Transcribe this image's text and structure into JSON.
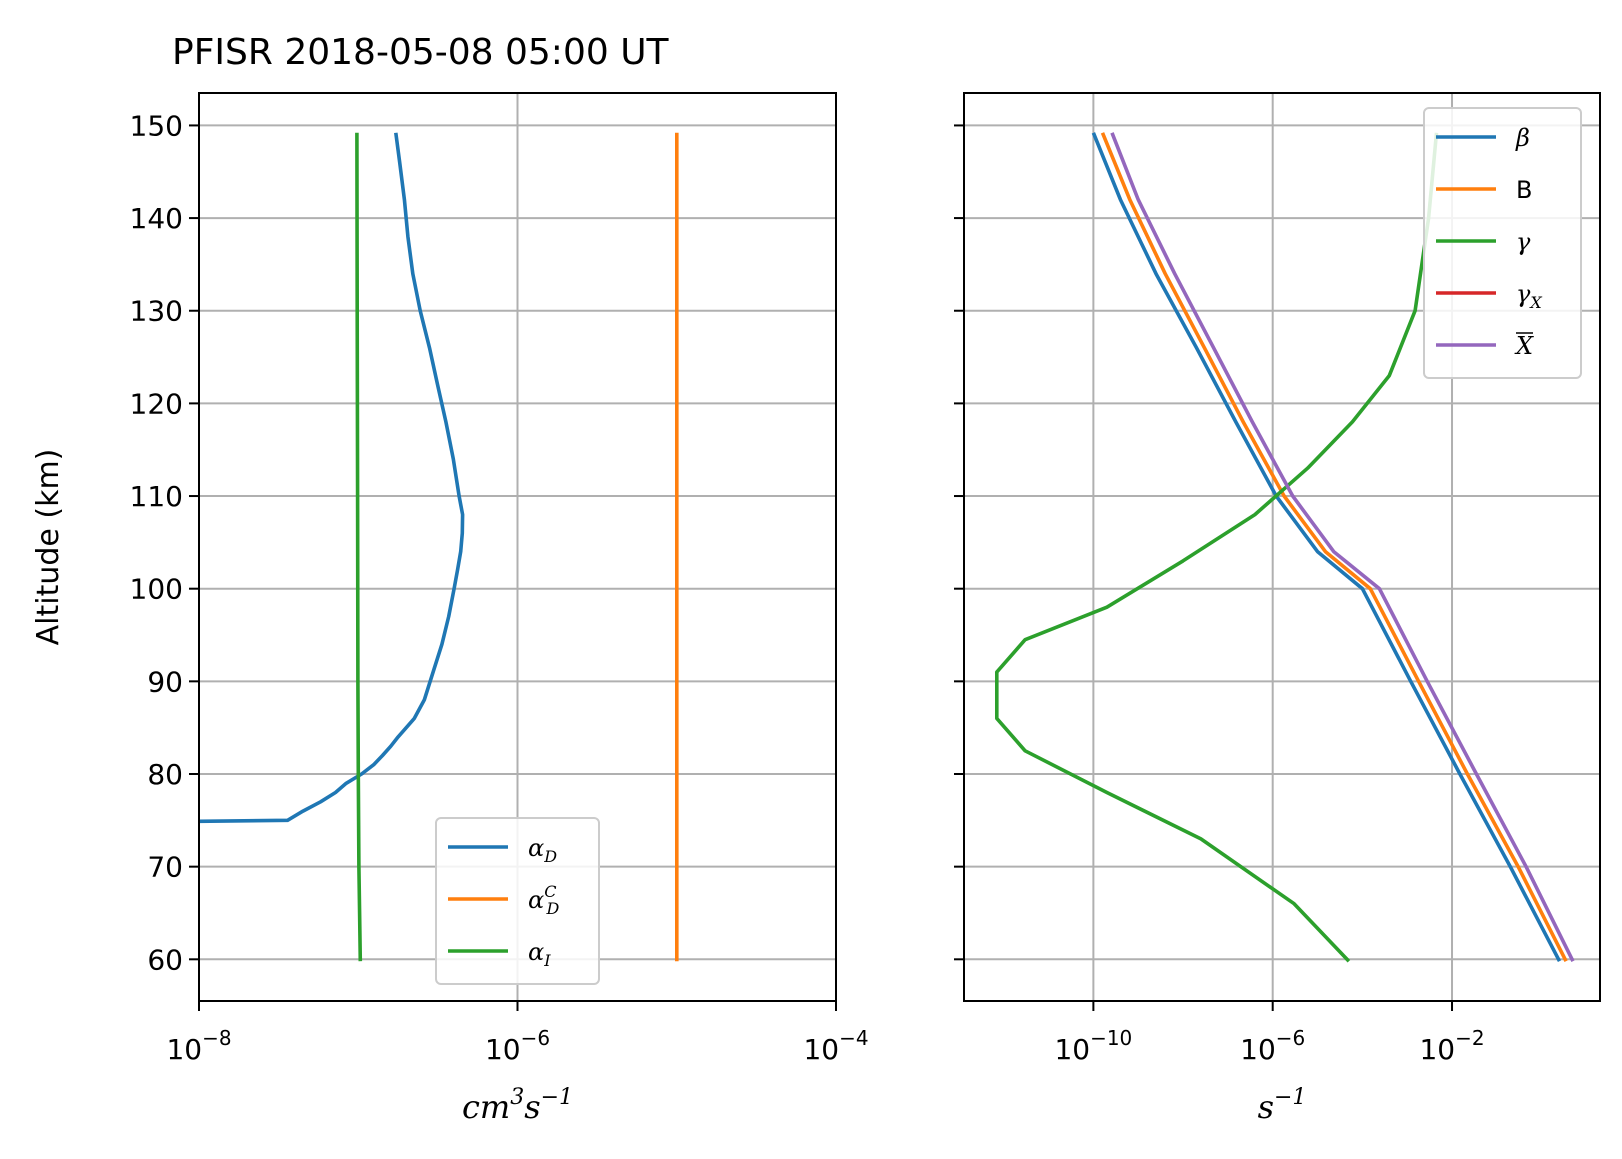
{
  "chart_data": [
    {
      "type": "line",
      "title": "PFISR 2018-05-08 05:00 UT",
      "ylabel": "Altitude (km)",
      "xlabel_base": "cm",
      "xlabel_sup1": "3",
      "xlabel_mid": "s",
      "xlabel_sup2": "−1",
      "xscale": "log",
      "xlim": [
        1e-08,
        0.0001
      ],
      "ylim": [
        55.5,
        153.5
      ],
      "xticks": [
        1e-08,
        1e-06,
        0.0001
      ],
      "xtick_base": "10",
      "xtick_exponents": [
        "−8",
        "−6",
        "−4"
      ],
      "yticks": [
        60,
        70,
        80,
        90,
        100,
        110,
        120,
        130,
        140,
        150
      ],
      "ytick_labels": [
        "60",
        "70",
        "80",
        "90",
        "100",
        "110",
        "120",
        "130",
        "140",
        "150"
      ],
      "grid": true,
      "legend_location": "lower-right",
      "series": [
        {
          "name": "αD",
          "label_main": "α",
          "label_sub": "D",
          "label_sup": "",
          "color": "#1f77b4",
          "x": [
            1e-08,
            3.6e-08,
            4.5e-08,
            5.8e-08,
            7.2e-08,
            8.4e-08,
            1.05e-07,
            1.25e-07,
            1.42e-07,
            1.6e-07,
            1.78e-07,
            2e-07,
            2.25e-07,
            2.6e-07,
            2.95e-07,
            3.35e-07,
            3.7e-07,
            4e-07,
            4.2e-07,
            4.4e-07,
            4.5e-07,
            4.52e-07,
            4.3e-07,
            3.95e-07,
            3.55e-07,
            3.15e-07,
            2.8e-07,
            2.45e-07,
            2.2e-07,
            2.05e-07,
            1.95e-07,
            1.82e-07,
            1.72e-07
          ],
          "y": [
            74.9,
            75,
            76,
            77,
            78,
            79,
            80,
            81,
            82,
            83,
            84,
            85,
            86,
            88,
            91,
            94,
            97,
            100,
            102,
            104,
            106,
            108,
            110,
            114,
            118,
            122,
            126,
            130,
            134,
            138,
            142,
            146,
            149.2
          ]
        },
        {
          "name": "αDC",
          "label_main": "α",
          "label_sub": "D",
          "label_sup": "C",
          "color": "#ff7f0e",
          "x": [
            1e-05,
            1e-05
          ],
          "y": [
            59.8,
            149.2
          ]
        },
        {
          "name": "αI",
          "label_main": "α",
          "label_sub": "I",
          "label_sup": "",
          "color": "#2ca02c",
          "x": [
            1.03e-07,
            1.02e-07,
            1.01e-07,
            1e-07,
            9.95e-08,
            9.9e-08,
            9.85e-08,
            9.8e-08
          ],
          "y": [
            59.8,
            65,
            70,
            80,
            90,
            110,
            130,
            149.2
          ]
        }
      ]
    },
    {
      "type": "line",
      "xlabel_base": "s",
      "xlabel_sup": "−1",
      "xscale": "log",
      "xlim": [
        1.3e-13,
        20.0
      ],
      "ylim": [
        55.5,
        153.5
      ],
      "xticks": [
        1e-10,
        1e-06,
        0.01
      ],
      "xtick_base": "10",
      "xtick_exponents": [
        "−10",
        "−6",
        "−2"
      ],
      "yticks": [
        60,
        70,
        80,
        90,
        100,
        110,
        120,
        130,
        140,
        150
      ],
      "sharey": true,
      "grid": true,
      "legend_location": "upper-right",
      "series": [
        {
          "name": "β",
          "label_main": "β",
          "label_sub": "",
          "label_bar": false,
          "label_roman": false,
          "color": "#1f77b4",
          "x": [
            2.5,
            0.2,
            0.015,
            0.0012,
            0.0001,
            1e-05,
            1.2e-06,
            1.5e-07,
            2e-08,
            2.5e-09,
            4e-10,
            1e-10
          ],
          "y": [
            59.8,
            70,
            80,
            90,
            100,
            104,
            110,
            118,
            126,
            134,
            142,
            149.2
          ]
        },
        {
          "name": "B",
          "label_main": "B",
          "label_sub": "",
          "label_bar": false,
          "label_roman": true,
          "color": "#ff7f0e",
          "x": [
            3.5,
            0.3,
            0.022,
            0.0018,
            0.00015,
            1.5e-05,
            1.8e-06,
            2.2e-07,
            3e-08,
            4e-09,
            6.5e-10,
            1.6e-10
          ],
          "y": [
            59.8,
            70,
            80,
            90,
            100,
            104,
            110,
            118,
            126,
            134,
            142,
            149.2
          ]
        },
        {
          "name": "γ",
          "label_main": "γ",
          "label_sub": "",
          "label_bar": false,
          "label_roman": false,
          "color": "#2ca02c",
          "x": [
            5e-05,
            3e-06,
            2.5e-08,
            2e-10,
            3e-12,
            7e-13,
            7e-13,
            3e-12,
            2e-10,
            1e-08,
            4e-07,
            6e-06,
            6e-05,
            0.0004,
            0.0015,
            0.003,
            0.0045
          ],
          "y": [
            59.8,
            66,
            73,
            78,
            82.5,
            86,
            91,
            94.5,
            98,
            103,
            108,
            113,
            118,
            123,
            130,
            140,
            149.2
          ]
        },
        {
          "name": "γX",
          "label_main": "γ",
          "label_sub": "X",
          "label_bar": false,
          "label_roman": false,
          "color": "#d62728",
          "x": [],
          "y": []
        },
        {
          "name": "X̅",
          "label_main": "X",
          "label_sub": "",
          "label_bar": true,
          "label_roman": false,
          "color": "#9467bd",
          "x": [
            5,
            0.45,
            0.035,
            0.0028,
            0.00024,
            2.3e-05,
            2.8e-06,
            3.5e-07,
            4.8e-08,
            6.5e-09,
            1e-09,
            2.6e-10
          ],
          "y": [
            59.8,
            70,
            80,
            90,
            100,
            104,
            110,
            118,
            126,
            134,
            142,
            149.2
          ]
        }
      ]
    }
  ]
}
